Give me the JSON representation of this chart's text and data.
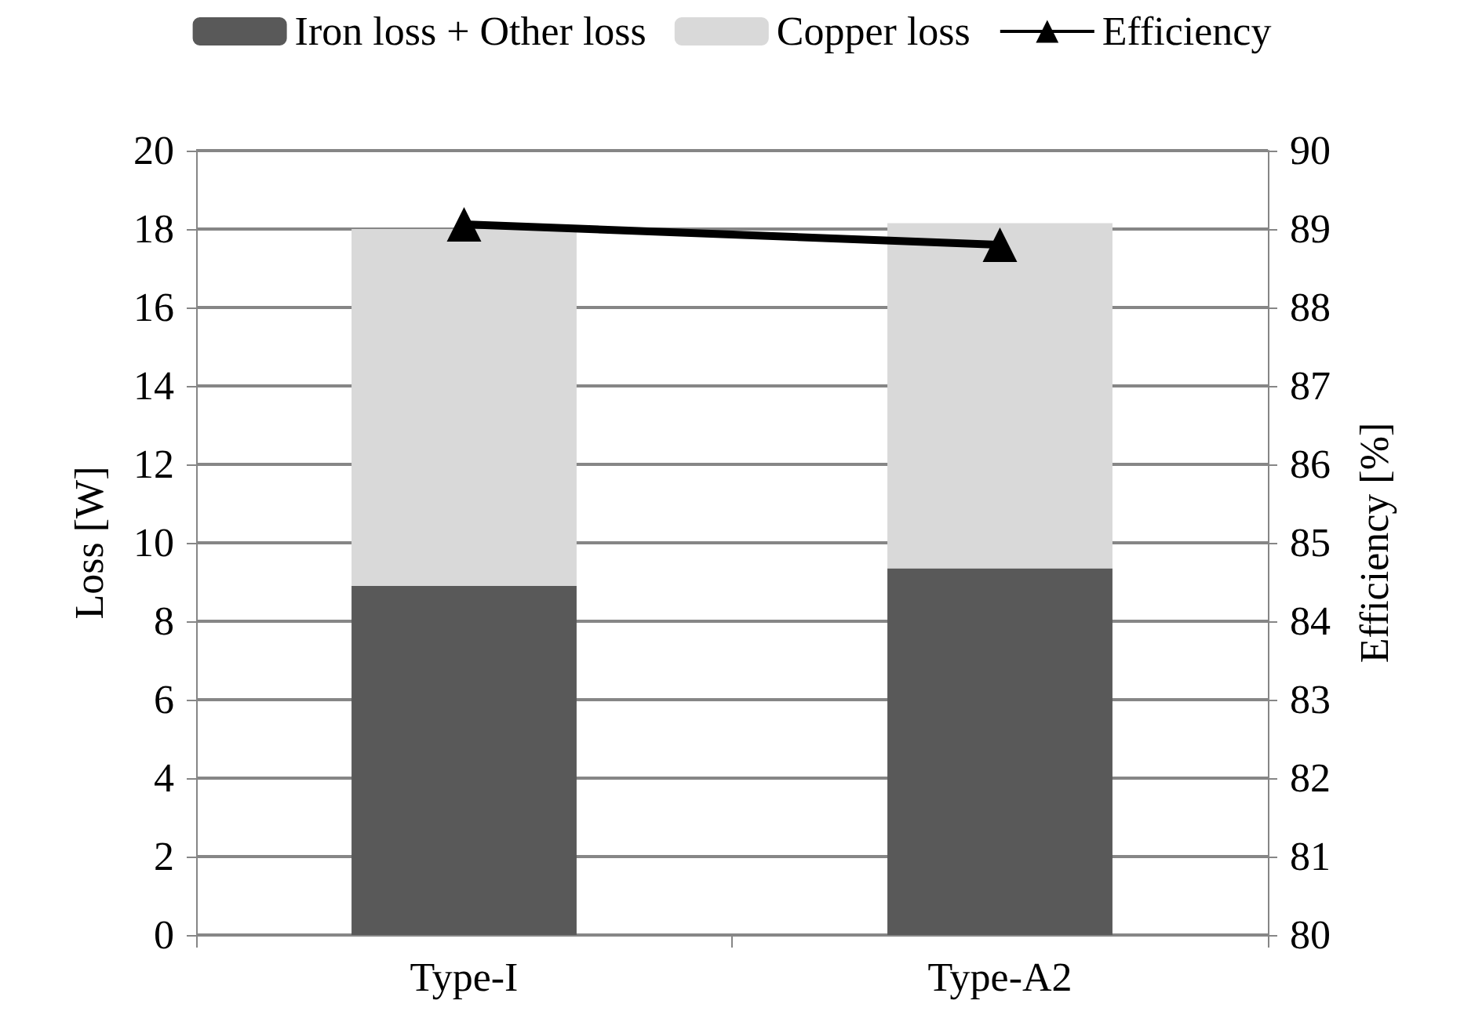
{
  "chart_data": {
    "type": "bar",
    "categories": [
      "Type-I",
      "Type-A2"
    ],
    "stacked": true,
    "ylabel": "Loss [W]",
    "y2label": "Efficiency [%]",
    "series": [
      {
        "name": "Iron loss + Other loss",
        "color": "#595959",
        "values": [
          8.9,
          9.35
        ]
      },
      {
        "name": "Copper loss",
        "color": "#d9d9d9",
        "values": [
          9.1,
          8.8
        ]
      },
      {
        "name": "Efficiency",
        "type": "line",
        "axis": "y2",
        "color": "#000000",
        "values": [
          89.06,
          88.8
        ],
        "marker": "triangle",
        "line_style": "solid"
      }
    ],
    "ylim": [
      0,
      20
    ],
    "yticks": [
      0,
      2,
      4,
      6,
      8,
      10,
      12,
      14,
      16,
      18,
      20
    ],
    "y2lim": [
      80,
      90
    ],
    "y2ticks": [
      80,
      81,
      82,
      83,
      84,
      85,
      86,
      87,
      88,
      89,
      90
    ],
    "grid": "y",
    "legend": "top"
  }
}
